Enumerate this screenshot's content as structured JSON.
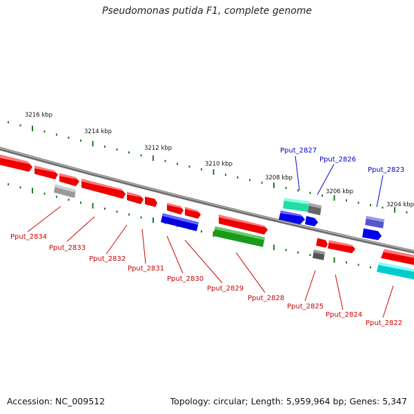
{
  "title": "Pseudomonas putida F1, complete genome",
  "footer": {
    "accession": "Accession: NC_009512",
    "summary": "Topology: circular; Length: 5,959,964 bp; Genes: 5,347"
  },
  "ruler_labels": [
    "3216 kbp",
    "3214 kbp",
    "3212 kbp",
    "3210 kbp",
    "3208 kbp",
    "3206 kbp",
    "3204 kbp"
  ],
  "gene_labels_top": [
    "Pput_2827",
    "Pput_2826",
    "Pput_2823"
  ],
  "gene_labels_bottom": [
    "Pput_2834",
    "Pput_2833",
    "Pput_2832",
    "Pput_2831",
    "Pput_2830",
    "Pput_2829",
    "Pput_2828",
    "Pput_2825",
    "Pput_2824",
    "Pput_2822"
  ],
  "colors": {
    "cds": "#ff0000",
    "rna": "#0000ff",
    "green": "#1a9a1a",
    "teal": "#22ddaa",
    "cyan": "#00dddd",
    "gray": "#888888",
    "backbone": "#808080",
    "ruler_ticks": "#1a7a1a",
    "label_top": "#0000cc",
    "label_bottom": "#cc0000"
  }
}
